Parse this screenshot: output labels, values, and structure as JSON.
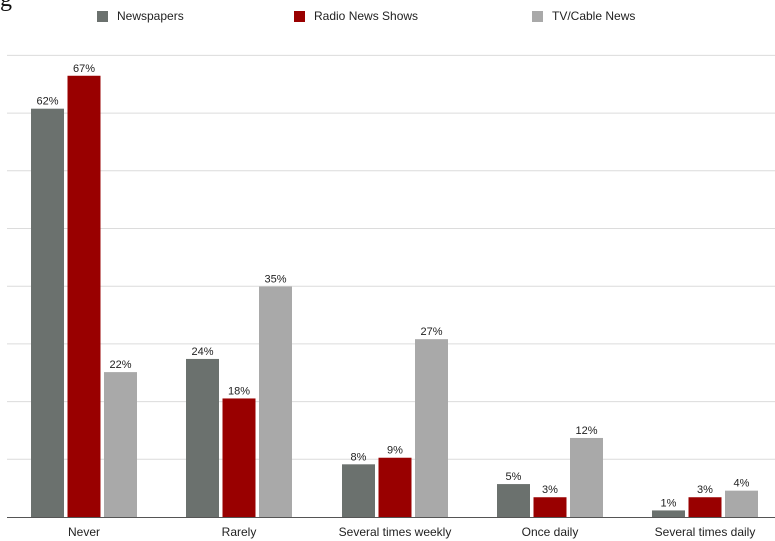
{
  "title_fragment": "g",
  "chart_data": {
    "type": "bar",
    "title": "",
    "xlabel": "",
    "ylabel": "",
    "ylim": [
      0,
      70
    ],
    "grid": true,
    "legend_position": "top",
    "categories": [
      "Never",
      "Rarely",
      "Several times weekly",
      "Once daily",
      "Several times daily"
    ],
    "series": [
      {
        "name": "Newspapers",
        "color": "#6b716e",
        "values": [
          62,
          24,
          8,
          5,
          1
        ]
      },
      {
        "name": "Radio News Shows",
        "color": "#990000",
        "values": [
          67,
          18,
          9,
          3,
          3
        ]
      },
      {
        "name": "TV/Cable News",
        "color": "#a9a9a9",
        "values": [
          22,
          35,
          27,
          12,
          4
        ]
      }
    ],
    "value_suffix": "%"
  }
}
